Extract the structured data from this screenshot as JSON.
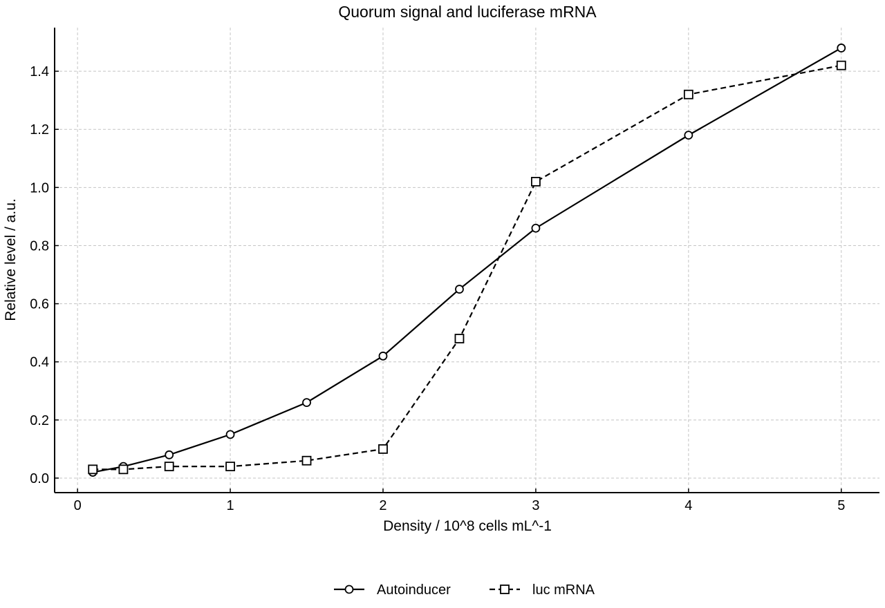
{
  "chart_data": {
    "type": "line",
    "title": "Quorum signal and luciferase mRNA",
    "xlabel": "Density / 10^8 cells mL^-1",
    "ylabel": "Relative level / a.u.",
    "xlim": [
      -0.15,
      5.25
    ],
    "ylim": [
      -0.05,
      1.55
    ],
    "xticks": [
      0,
      1,
      2,
      3,
      4,
      5
    ],
    "xtick_labels": [
      "0",
      "1",
      "2",
      "3",
      "4",
      "5"
    ],
    "yticks": [
      0.0,
      0.2,
      0.4,
      0.6,
      0.8,
      1.0,
      1.2,
      1.4
    ],
    "ytick_labels": [
      "0.0",
      "0.2",
      "0.4",
      "0.6",
      "0.8",
      "1.0",
      "1.2",
      "1.4"
    ],
    "grid": true,
    "legend_position": "bottom-center",
    "series": [
      {
        "name": "Autoinducer",
        "marker": "circle",
        "line_style": "solid",
        "color": "#000000",
        "x": [
          0.1,
          0.3,
          0.6,
          1.0,
          1.5,
          2.0,
          2.5,
          3.0,
          4.0,
          5.0
        ],
        "y": [
          0.02,
          0.04,
          0.08,
          0.15,
          0.26,
          0.42,
          0.65,
          0.86,
          1.18,
          1.48
        ]
      },
      {
        "name": "luc mRNA",
        "marker": "square",
        "line_style": "dashed",
        "color": "#000000",
        "x": [
          0.1,
          0.3,
          0.6,
          1.0,
          1.5,
          2.0,
          2.5,
          3.0,
          4.0,
          5.0
        ],
        "y": [
          0.03,
          0.03,
          0.04,
          0.04,
          0.06,
          0.1,
          0.48,
          1.02,
          1.32,
          1.42
        ]
      }
    ]
  }
}
